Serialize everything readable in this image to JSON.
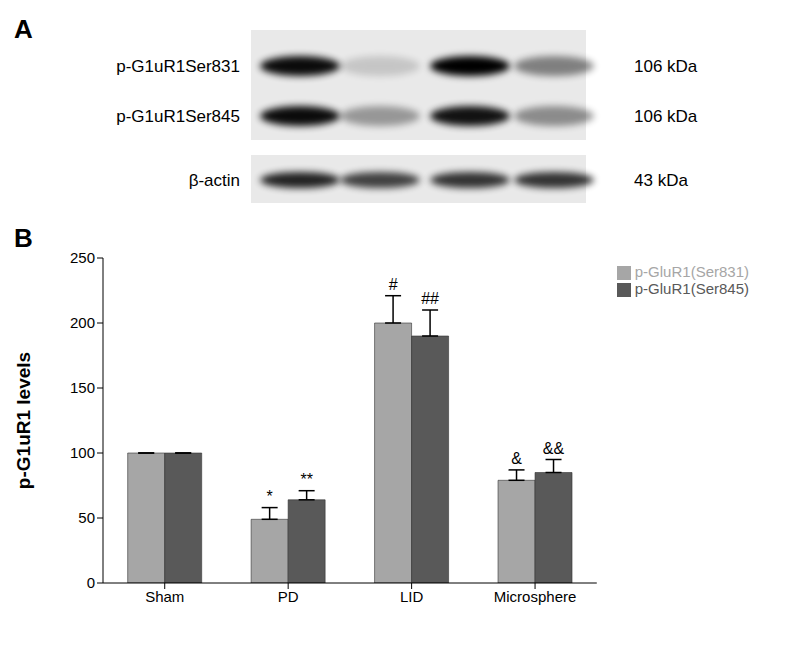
{
  "blot": {
    "panel_label": "A",
    "rows": [
      {
        "label": "p-G1uR1Ser831",
        "size": "106 kDa"
      },
      {
        "label": "p-G1uR1Ser845",
        "size": "106 kDa"
      },
      {
        "label": "β-actin",
        "size": "43 kDa"
      }
    ]
  },
  "chart_data": {
    "type": "bar",
    "panel_label": "B",
    "y_label": "p-G1uR1 levels",
    "categories": [
      "Sham",
      "PD",
      "LID",
      "Microsphere"
    ],
    "series": [
      {
        "name": "p-GluR1(Ser831)",
        "color": "#a6a6a6",
        "values": [
          100,
          49,
          200,
          79
        ],
        "errors": [
          0,
          9,
          21,
          8
        ],
        "annotations": [
          null,
          "*",
          "#",
          "&"
        ]
      },
      {
        "name": "p-GluR1(Ser845)",
        "color": "#595959",
        "values": [
          100,
          64,
          190,
          85
        ],
        "errors": [
          0,
          7,
          20,
          10
        ],
        "annotations": [
          null,
          "**",
          "##",
          "&&"
        ]
      }
    ],
    "ylim": [
      0,
      250
    ],
    "yticks": [
      0,
      50,
      100,
      150,
      200,
      250
    ],
    "grid": false,
    "legend": "upper right"
  }
}
